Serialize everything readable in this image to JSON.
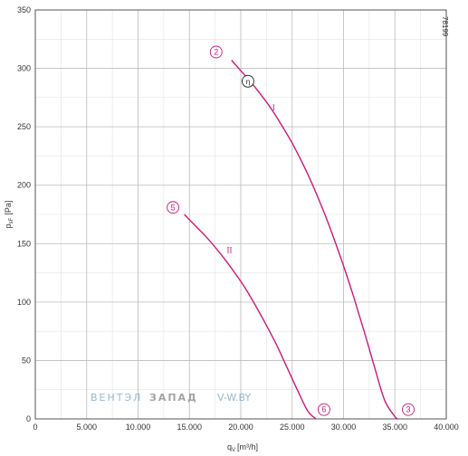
{
  "chart_data": {
    "type": "line",
    "xlabel": {
      "main": "q",
      "sub": "V",
      "unit": "[m³/h]"
    },
    "ylabel": {
      "main": "p",
      "sub": "sF",
      "unit": "[Pa]"
    },
    "xlim": [
      0,
      40000
    ],
    "ylim": [
      0,
      350
    ],
    "x_ticks": [
      0,
      5000,
      10000,
      15000,
      20000,
      25000,
      30000,
      35000,
      40000
    ],
    "x_tick_labels": [
      "0",
      "5.000",
      "10.000",
      "15.000",
      "20.000",
      "25.000",
      "30.000",
      "35.000",
      "40.000"
    ],
    "y_ticks": [
      0,
      50,
      100,
      150,
      200,
      250,
      300,
      350
    ],
    "y_tick_labels": [
      "0",
      "50",
      "100",
      "150",
      "200",
      "250",
      "300",
      "350"
    ],
    "grid": true,
    "minor_x_step": 2500,
    "minor_y_step": 25,
    "series": [
      {
        "name": "I",
        "color": "#d0177a",
        "x": [
          19100,
          20000,
          21000,
          22000,
          23000,
          24000,
          25000,
          26000,
          27000,
          28000,
          29000,
          30000,
          31000,
          32000,
          33000,
          34000,
          35000,
          35300
        ],
        "y": [
          307,
          298,
          288,
          277,
          265,
          251,
          236,
          219,
          200,
          179,
          156,
          131,
          104,
          75,
          45,
          16,
          2,
          0
        ]
      },
      {
        "name": "II",
        "color": "#d0177a",
        "x": [
          14500,
          15500,
          16500,
          17500,
          18500,
          19500,
          20500,
          21500,
          22500,
          23500,
          24500,
          25500,
          26500,
          27300
        ],
        "y": [
          175,
          166,
          157,
          147,
          136,
          124,
          111,
          96,
          80,
          63,
          44,
          25,
          7,
          0
        ]
      }
    ],
    "markers": [
      {
        "label": "2",
        "x": 17600,
        "y": 314
      },
      {
        "label": "3",
        "x": 36300,
        "y": 8
      },
      {
        "label": "5",
        "x": 13400,
        "y": 181
      },
      {
        "label": "6",
        "x": 28100,
        "y": 8
      }
    ],
    "optimum": {
      "label": "η",
      "x": 20700,
      "y": 289
    },
    "curve_labels": [
      {
        "label": "I",
        "x": 23200,
        "y": 264
      },
      {
        "label": "II",
        "x": 18900,
        "y": 142
      }
    ],
    "figure_code": "78199",
    "watermark": {
      "part1": "ВЕНТЭЛ",
      "part2": "ЗАПАД",
      "url": "V-W.BY"
    }
  }
}
